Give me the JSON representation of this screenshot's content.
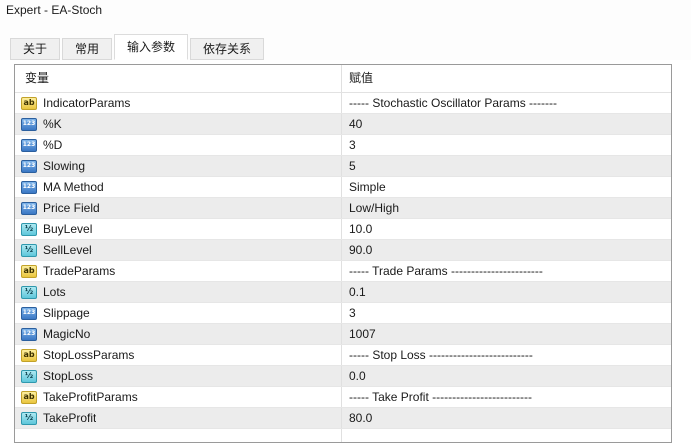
{
  "window": {
    "title": "Expert - EA-Stoch"
  },
  "tabs": [
    {
      "label": "关于",
      "active": false
    },
    {
      "label": "常用",
      "active": false
    },
    {
      "label": "输入参数",
      "active": true
    },
    {
      "label": "依存关系",
      "active": false
    }
  ],
  "table": {
    "columns": [
      "变量",
      "赋值"
    ],
    "rows": [
      {
        "icon": "string",
        "name": "IndicatorParams",
        "value": "----- Stochastic Oscillator Params -------"
      },
      {
        "icon": "integer",
        "name": "%K",
        "value": "40"
      },
      {
        "icon": "integer",
        "name": "%D",
        "value": "3"
      },
      {
        "icon": "integer",
        "name": "Slowing",
        "value": "5"
      },
      {
        "icon": "integer",
        "name": "MA Method",
        "value": "Simple"
      },
      {
        "icon": "integer",
        "name": "Price Field",
        "value": "Low/High"
      },
      {
        "icon": "double",
        "name": "BuyLevel",
        "value": "10.0"
      },
      {
        "icon": "double",
        "name": "SellLevel",
        "value": "90.0"
      },
      {
        "icon": "string",
        "name": "TradeParams",
        "value": "----- Trade Params -----------------------"
      },
      {
        "icon": "double",
        "name": "Lots",
        "value": "0.1"
      },
      {
        "icon": "integer",
        "name": "Slippage",
        "value": "3"
      },
      {
        "icon": "integer",
        "name": "MagicNo",
        "value": "1007"
      },
      {
        "icon": "string",
        "name": "StopLossParams",
        "value": "----- Stop Loss --------------------------"
      },
      {
        "icon": "double",
        "name": "StopLoss",
        "value": "0.0"
      },
      {
        "icon": "string",
        "name": "TakeProfitParams",
        "value": "----- Take Profit -------------------------"
      },
      {
        "icon": "double",
        "name": "TakeProfit",
        "value": "80.0"
      }
    ]
  },
  "icons": {
    "string": {
      "glyph": "ab",
      "bg_top": "#fdef9e",
      "bg_bottom": "#e9c53e",
      "border": "#c2a22a",
      "fg": "#3a3000"
    },
    "integer": {
      "glyph": "123",
      "bg_top": "#7db4ea",
      "bg_bottom": "#3a77c4",
      "border": "#2b5f9e",
      "fg": "#ffffff"
    },
    "double": {
      "glyph": "½",
      "bg_top": "#aee9f2",
      "bg_bottom": "#5ec6da",
      "border": "#2f98ad",
      "fg": "#083d4a"
    }
  },
  "colors": {
    "row_stripe": "#ececec",
    "table_border": "#9a9a9a",
    "grid_line": "#e0e0e0",
    "tab_inactive_bg": "#f0f0f0",
    "tab_active_bg": "#ffffff",
    "text": "#1a1a1a"
  }
}
